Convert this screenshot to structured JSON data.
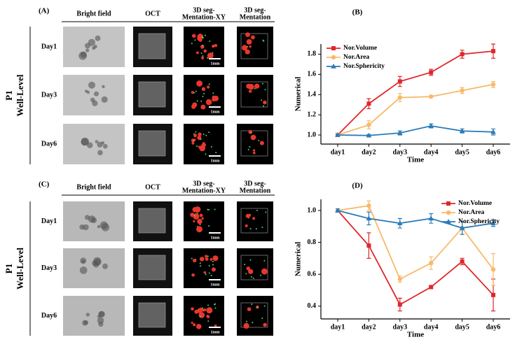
{
  "panels": [
    {
      "label": "(A)",
      "columns": [
        [
          "Bright field"
        ],
        [
          "OCT"
        ],
        [
          "3D seg-",
          "Mentation-XY"
        ],
        [
          "3D seg-",
          "Mentation"
        ]
      ],
      "rows": [
        "Day1",
        "Day3",
        "Day6"
      ],
      "group": [
        "P1",
        "Well-Level"
      ],
      "scale_bar": "1mm"
    },
    {
      "label": "(C)",
      "columns": [
        [
          "Bright field"
        ],
        [
          "OCT"
        ],
        [
          "3D seg-",
          "Mentation-XY"
        ],
        [
          "3D seg-",
          "Mentation"
        ]
      ],
      "rows": [
        "Day1",
        "Day3",
        "Day6"
      ],
      "group": [
        "P1",
        "Well-Level"
      ],
      "scale_bar": "1mm"
    }
  ],
  "chart_data": [
    {
      "type": "line",
      "panel_label": "(B)",
      "xlabel": "Time",
      "ylabel": "Numerical",
      "categories": [
        "day1",
        "day2",
        "day3",
        "day4",
        "day5",
        "day6"
      ],
      "ylim": [
        0.91,
        1.9
      ],
      "yticks": [
        {
          "value": 1.0,
          "label": "1.0"
        },
        {
          "value": 1.2,
          "label": "1.2"
        },
        {
          "value": 1.4,
          "label": "1.4"
        },
        {
          "value": 1.6,
          "label": "1.6"
        },
        {
          "value": 1.8,
          "label": "1.8"
        }
      ],
      "legend": "top-left",
      "series": [
        {
          "name": "Nor.Volume",
          "color": "#e0262b",
          "marker": "square",
          "values": [
            1.0,
            1.31,
            1.53,
            1.62,
            1.8,
            1.83
          ],
          "errors": [
            0.01,
            0.05,
            0.05,
            0.03,
            0.04,
            0.07
          ]
        },
        {
          "name": "Nor.Area",
          "color": "#f8b968",
          "marker": "circle",
          "values": [
            1.0,
            1.1,
            1.37,
            1.38,
            1.44,
            1.5
          ],
          "errors": [
            0.01,
            0.04,
            0.04,
            0.01,
            0.03,
            0.03
          ]
        },
        {
          "name": "Nor.Sphericity",
          "color": "#2b7bb9",
          "marker": "triangle",
          "values": [
            1.0,
            0.995,
            1.02,
            1.09,
            1.04,
            1.03
          ],
          "errors": [
            0.005,
            0.01,
            0.02,
            0.02,
            0.02,
            0.03
          ]
        }
      ]
    },
    {
      "type": "line",
      "panel_label": "(D)",
      "xlabel": "Time",
      "ylabel": "Numerical",
      "categories": [
        "day1",
        "day2",
        "day3",
        "day4",
        "day5",
        "day6"
      ],
      "ylim": [
        0.32,
        1.07
      ],
      "yticks": [
        {
          "value": 0.4,
          "label": "0.4"
        },
        {
          "value": 0.6,
          "label": "0.6"
        },
        {
          "value": 0.8,
          "label": "0.8"
        },
        {
          "value": 1.0,
          "label": "1.0"
        }
      ],
      "legend": "top-right",
      "series": [
        {
          "name": "Nor.Volume",
          "color": "#e0262b",
          "marker": "square",
          "values": [
            1.0,
            0.78,
            0.41,
            0.52,
            0.68,
            0.47
          ],
          "errors": [
            0.01,
            0.08,
            0.04,
            0.01,
            0.02,
            0.1
          ]
        },
        {
          "name": "Nor.Area",
          "color": "#f8b968",
          "marker": "circle",
          "values": [
            1.0,
            1.03,
            0.57,
            0.67,
            0.89,
            0.63
          ],
          "errors": [
            0.01,
            0.03,
            0.02,
            0.04,
            0.04,
            0.1
          ]
        },
        {
          "name": "Nor.Sphericity",
          "color": "#2b7bb9",
          "marker": "triangle",
          "values": [
            1.0,
            0.95,
            0.92,
            0.95,
            0.89,
            0.92
          ],
          "errors": [
            0.01,
            0.04,
            0.03,
            0.03,
            0.04,
            0.02
          ]
        }
      ]
    }
  ]
}
